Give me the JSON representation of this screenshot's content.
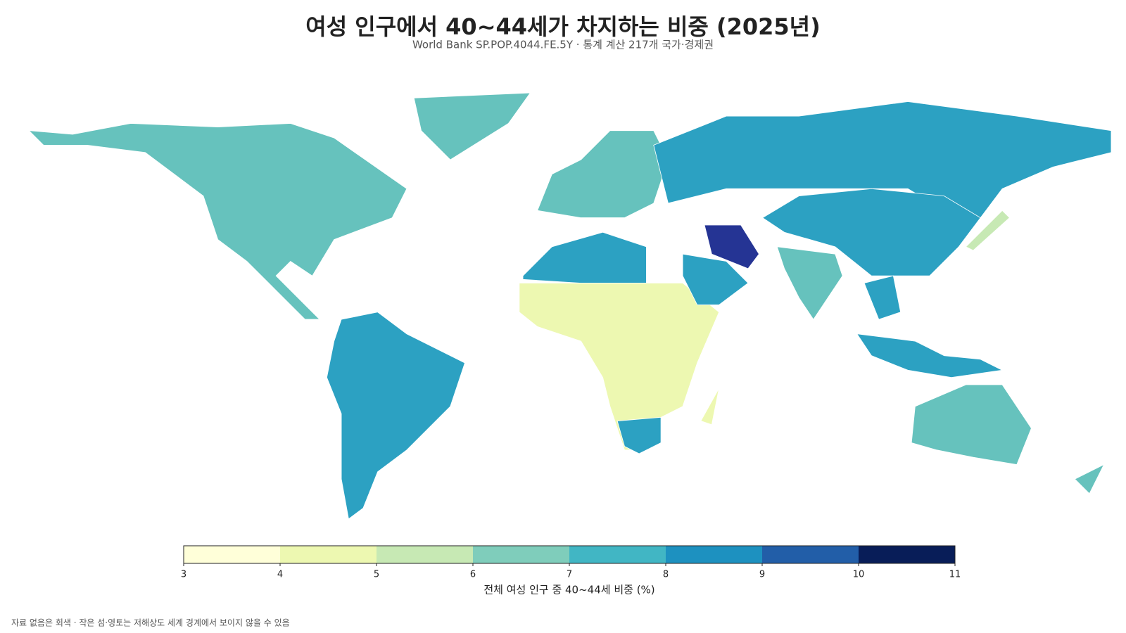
{
  "header": {
    "title": "여성 인구에서 40~44세가 차지하는 비중 (2025년)",
    "subtitle": "World Bank SP.POP.4044.FE.5Y · 통계 계산 217개 국가·경제권"
  },
  "colorbar": {
    "ticks": [
      3,
      4,
      5,
      6,
      7,
      8,
      9,
      10,
      11
    ],
    "colors": [
      "#ffffd9",
      "#edf8b1",
      "#c7e9b4",
      "#7fcdbb",
      "#41b6c4",
      "#1d91c0",
      "#225ea8",
      "#081d58"
    ],
    "label": "전체 여성 인구 중 40~44세 비중 (%)"
  },
  "footnote": "자료 없음은 회색 · 작은 섬·영토는 저해상도 세계 경계에서 보이지 않을 수 있음"
}
